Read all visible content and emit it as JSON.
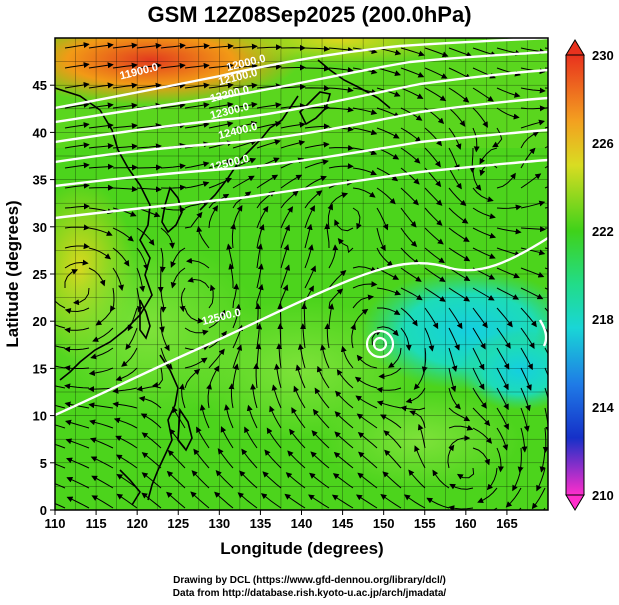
{
  "title": "GSM 12Z08Sep2025 (200.0hPa)",
  "axes": {
    "xlabel": "Longitude (degrees)",
    "ylabel": "Latitude  (degrees)",
    "xlim": [
      110,
      170
    ],
    "ylim": [
      0,
      50
    ],
    "xticks": [
      110,
      115,
      120,
      125,
      130,
      135,
      140,
      145,
      150,
      155,
      160,
      165
    ],
    "yticks": [
      0,
      5,
      10,
      15,
      20,
      25,
      30,
      35,
      40,
      45
    ]
  },
  "colorbar": {
    "min": 210,
    "max": 230,
    "tick_labels": [
      "230",
      "226",
      "222",
      "218",
      "214",
      "210"
    ]
  },
  "contours": [
    {
      "label": "11900.0",
      "lon": 118,
      "lat": 45.6
    },
    {
      "label": "12000.0",
      "lon": 131,
      "lat": 46.5
    },
    {
      "label": "12100.0",
      "lon": 130,
      "lat": 45.0
    },
    {
      "label": "12200.0",
      "lon": 129,
      "lat": 43.2
    },
    {
      "label": "12300.0",
      "lon": 129,
      "lat": 41.4
    },
    {
      "label": "12400.0",
      "lon": 130,
      "lat": 39.3
    },
    {
      "label": "12500.0",
      "lon": 129,
      "lat": 35.9
    },
    {
      "label": "12500.0",
      "lon": 128,
      "lat": 19.6
    }
  ],
  "colors": {
    "warm": "#e23a1e",
    "orange": "#f29a16",
    "yellow": "#e6d81e",
    "green": "#3fd21a",
    "cyan": "#19d6d6",
    "blue": "#1540dc",
    "magenta": "#ff2ecb"
  },
  "credits": {
    "line1": "Drawing by DCL (https://www.gfd-dennou.org/library/dcl/)",
    "line2": "Data from http://database.rish.kyoto-u.ac.jp/arch/jmadata/"
  }
}
